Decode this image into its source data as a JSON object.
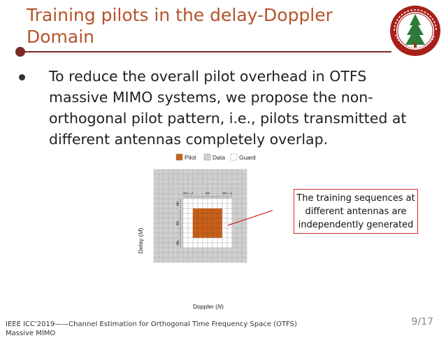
{
  "slide": {
    "title": "Training pilots in the delay-Doppler Domain",
    "bullet": "To reduce the overall pilot overhead in OTFS massive MIMO systems, we propose the non-orthogonal pilot pattern, i.e., pilots transmitted at different antennas completely overlap.",
    "callout": "The training sequences at different antennas are independently generated",
    "footer": "IEEE ICC'2019——Channel Estimation for Orthogonal Time Frequency Space (OTFS) Massive MIMO",
    "page": "9/17"
  },
  "figure": {
    "legend": [
      {
        "label": "Pilot",
        "color": "#c8601a"
      },
      {
        "label": "Data",
        "color": "#d0d0d0"
      },
      {
        "label": "Guard",
        "color": "#ffffff"
      }
    ],
    "xlabel_text": "Doppler (",
    "xlabel_var": "N",
    "xlabel_end": ")",
    "ylabel_text": "Delay (",
    "ylabel_var": "M",
    "ylabel_end": ")",
    "top_dims": [
      {
        "sym": "N",
        "sub": "v",
        "suffix": "/ 2"
      },
      {
        "sym": "N",
        "sub": "v",
        "suffix": ""
      },
      {
        "sym": "N",
        "sub": "v",
        "suffix": "/ 2"
      }
    ],
    "side_dims": [
      {
        "sym": "M",
        "sub": "τ"
      },
      {
        "sym": "M",
        "sub": "τ"
      },
      {
        "sym": "M",
        "sub": "τ"
      }
    ],
    "grid_cells": 19,
    "guard_start": 6,
    "guard_size": 10,
    "pilot_start": 8,
    "pilot_size": 6
  },
  "colors": {
    "title": "#b5532a",
    "rule": "#7a2a25",
    "pilot": "#c8601a",
    "data": "#d0d0d0",
    "callout_border": "#cc2a2a"
  },
  "logo": {
    "icon": "university-seal-icon"
  }
}
